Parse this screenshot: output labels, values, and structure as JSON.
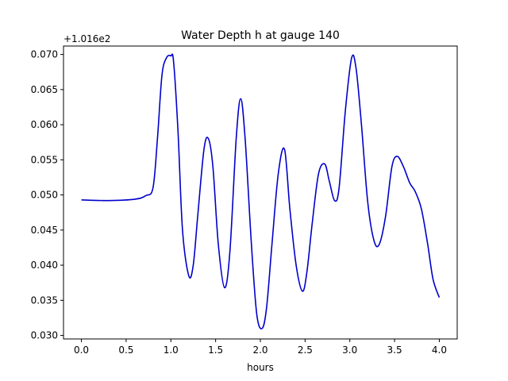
{
  "chart_data": {
    "type": "line",
    "title": "Water Depth h at gauge 140",
    "xlabel": "hours",
    "ylabel": "",
    "y_offset_label": "+1.016e2",
    "xlim": [
      -0.2,
      4.2
    ],
    "ylim": [
      0.0295,
      0.0712
    ],
    "xticks": [
      0.0,
      0.5,
      1.0,
      1.5,
      2.0,
      2.5,
      3.0,
      3.5,
      4.0
    ],
    "xtick_labels": [
      "0.0",
      "0.5",
      "1.0",
      "1.5",
      "2.0",
      "2.5",
      "3.0",
      "3.5",
      "4.0"
    ],
    "yticks": [
      0.03,
      0.035,
      0.04,
      0.045,
      0.05,
      0.055,
      0.06,
      0.065,
      0.07
    ],
    "ytick_labels": [
      "0.030",
      "0.035",
      "0.040",
      "0.045",
      "0.050",
      "0.055",
      "0.060",
      "0.065",
      "0.070"
    ],
    "grid": false,
    "legend": "none",
    "series": [
      {
        "color": "#0000cc",
        "x": [
          0.0,
          0.3,
          0.6,
          0.72,
          0.8,
          0.85,
          0.9,
          0.95,
          1.0,
          1.03,
          1.08,
          1.13,
          1.2,
          1.25,
          1.3,
          1.37,
          1.42,
          1.47,
          1.53,
          1.6,
          1.66,
          1.73,
          1.78,
          1.83,
          1.9,
          1.96,
          2.02,
          2.07,
          2.13,
          2.2,
          2.27,
          2.33,
          2.4,
          2.47,
          2.52,
          2.58,
          2.65,
          2.72,
          2.77,
          2.83,
          2.88,
          2.95,
          3.02,
          3.07,
          3.13,
          3.2,
          3.27,
          3.33,
          3.4,
          3.47,
          3.53,
          3.6,
          3.67,
          3.73,
          3.8,
          3.87,
          3.93,
          4.0
        ],
        "y": [
          0.0493,
          0.0492,
          0.0494,
          0.0499,
          0.051,
          0.058,
          0.067,
          0.0695,
          0.0698,
          0.069,
          0.059,
          0.045,
          0.0385,
          0.04,
          0.047,
          0.0565,
          0.058,
          0.054,
          0.043,
          0.0368,
          0.042,
          0.058,
          0.0637,
          0.058,
          0.043,
          0.033,
          0.031,
          0.034,
          0.043,
          0.053,
          0.0565,
          0.048,
          0.04,
          0.0363,
          0.039,
          0.046,
          0.053,
          0.0544,
          0.052,
          0.0492,
          0.051,
          0.062,
          0.0695,
          0.068,
          0.06,
          0.049,
          0.0435,
          0.043,
          0.047,
          0.054,
          0.0555,
          0.054,
          0.0517,
          0.0505,
          0.048,
          0.043,
          0.038,
          0.0354
        ]
      }
    ]
  }
}
